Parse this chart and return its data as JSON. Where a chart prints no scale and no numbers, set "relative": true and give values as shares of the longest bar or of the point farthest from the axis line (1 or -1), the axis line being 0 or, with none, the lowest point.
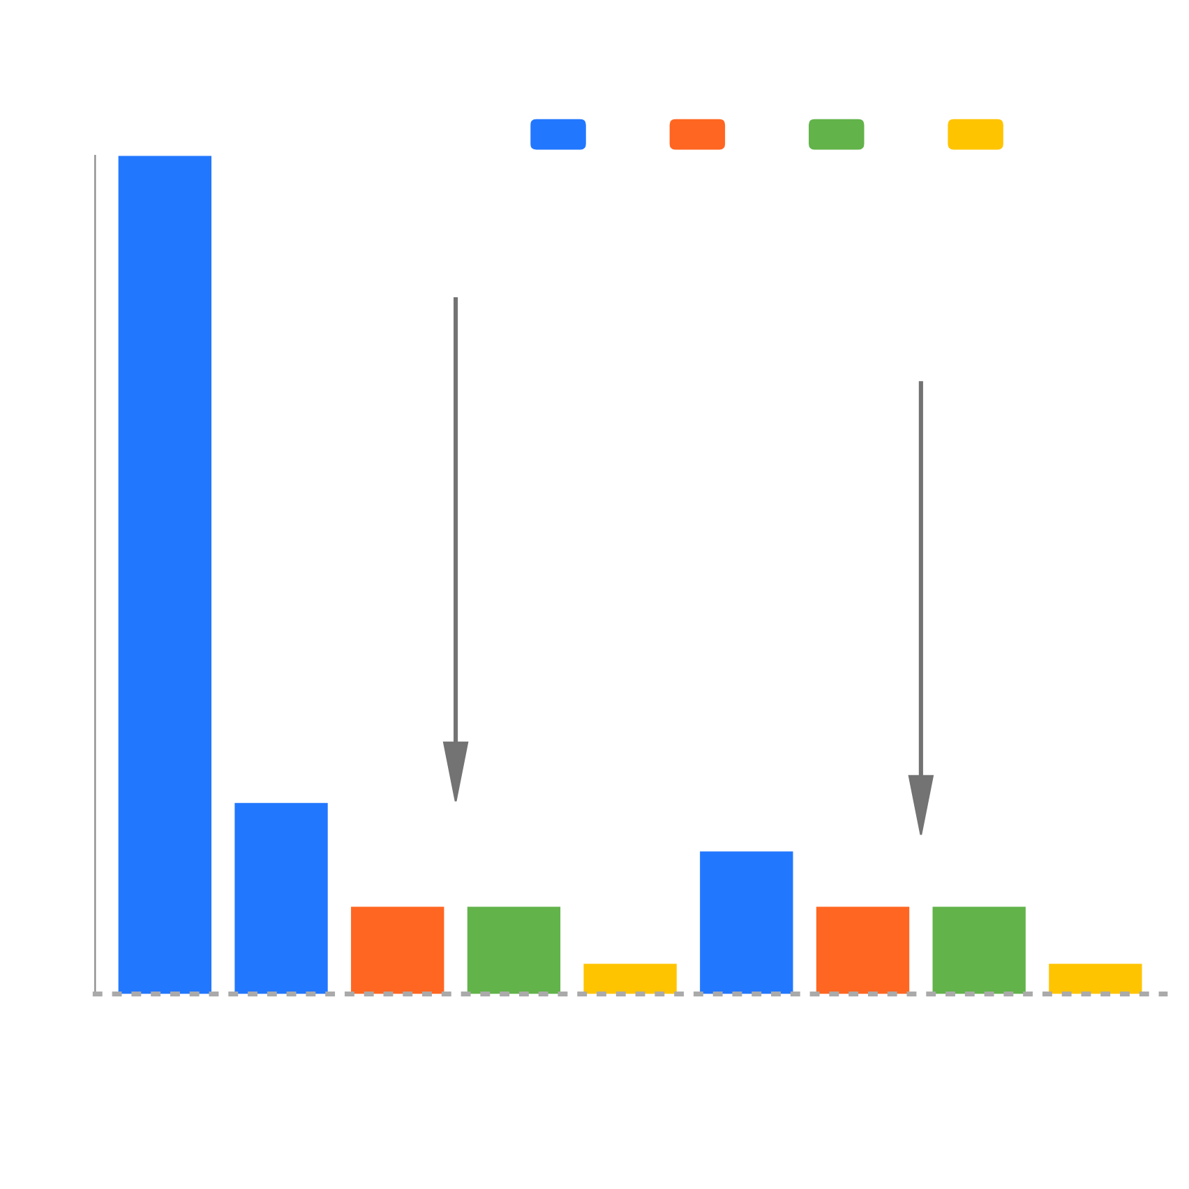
{
  "chart_data": {
    "type": "bar",
    "relative": true,
    "categories": [
      null,
      null,
      null,
      null,
      null,
      null,
      null,
      null,
      null
    ],
    "values": [
      1,
      0.228,
      0.104,
      0.104,
      0.036,
      0.17,
      0.104,
      0.104,
      0.036
    ],
    "colors": [
      "#2277ff",
      "#2277ff",
      "#ff6622",
      "#62b34a",
      "#ffc400",
      "#2277ff",
      "#ff6622",
      "#62b34a",
      "#ffc400"
    ],
    "grid": false,
    "legend": false
  }
}
